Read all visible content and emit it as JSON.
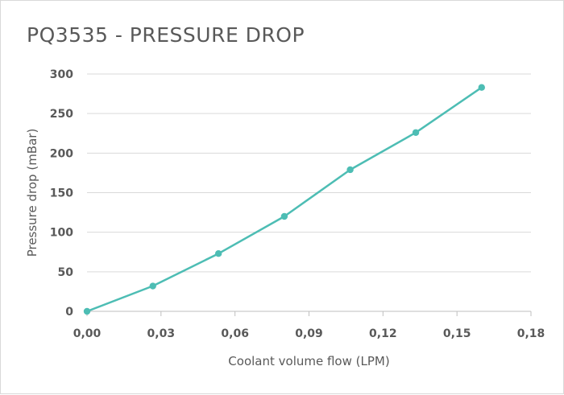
{
  "chart_data": {
    "type": "line",
    "title": "PQ3535 - PRESSURE DROP",
    "xlabel": "Coolant volume flow (LPM)",
    "ylabel": "Pressure drop (mBar)",
    "xlim": [
      0,
      0.18
    ],
    "ylim": [
      0,
      300
    ],
    "x_ticks": [
      "0,00",
      "0,03",
      "0,06",
      "0,09",
      "0,12",
      "0,15",
      "0,18"
    ],
    "y_ticks": [
      "0",
      "50",
      "100",
      "150",
      "200",
      "250",
      "300"
    ],
    "grid": true,
    "legend": "none",
    "series": [
      {
        "color": "#4dbdb4",
        "x": [
          0.0,
          0.0267,
          0.0533,
          0.08,
          0.1067,
          0.1333,
          0.16
        ],
        "y": [
          0,
          32,
          73,
          120,
          179,
          226,
          283
        ]
      }
    ]
  }
}
